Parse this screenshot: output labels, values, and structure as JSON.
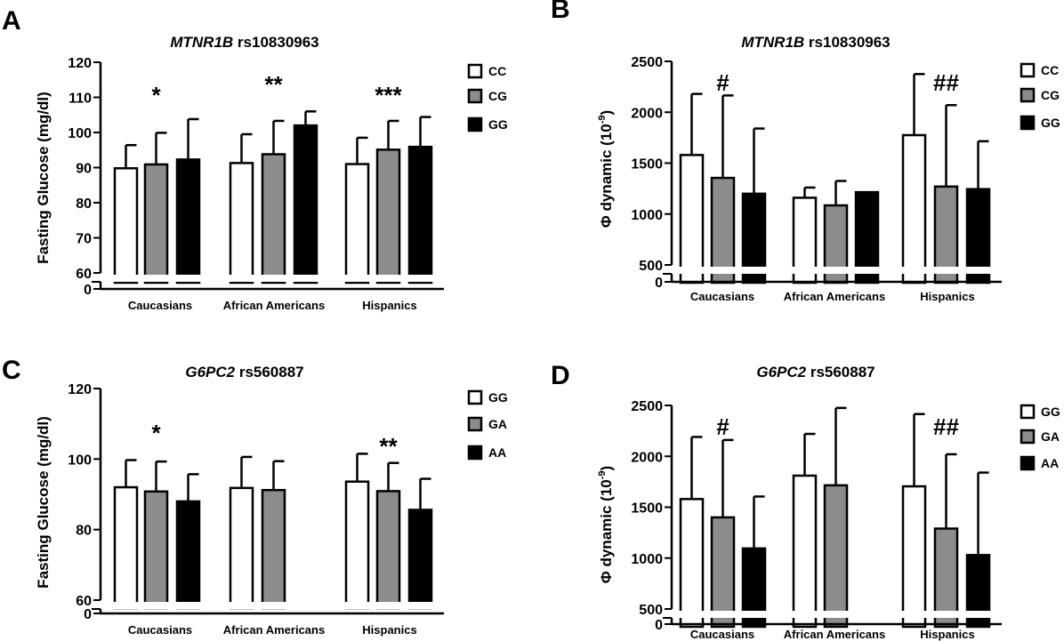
{
  "chart_data": [
    {
      "type": "bar",
      "panel": "A",
      "title_gene": "MTNR1B",
      "title_snp": "rs10830963",
      "ylabel": "Fasting Glucose (mg/dl)",
      "ylim": [
        60,
        120
      ],
      "yticks": [
        60,
        70,
        80,
        90,
        100,
        110,
        120
      ],
      "axis_break": true,
      "categories": [
        "Caucasians",
        "African Americans",
        "Hispanics"
      ],
      "series": [
        {
          "name": "CC",
          "values": [
            89.8,
            91.3,
            91.0
          ],
          "errors": [
            6.6,
            8.2,
            7.5
          ]
        },
        {
          "name": "CG",
          "values": [
            90.9,
            93.8,
            95.1
          ],
          "errors": [
            9.0,
            9.5,
            8.2
          ]
        },
        {
          "name": "GG",
          "values": [
            92.3,
            102.0,
            95.9
          ],
          "errors": [
            11.5,
            4.0,
            8.5
          ]
        }
      ],
      "annotations": [
        "*",
        "**",
        "***"
      ],
      "legend_position": "top-right"
    },
    {
      "type": "bar",
      "panel": "B",
      "title_gene": "MTNR1B",
      "title_snp": "rs10830963",
      "ylabel_prefix": "Φ dynamic (10",
      "ylabel_exp": "-9",
      "ylabel_suffix": ")",
      "ylim": [
        500,
        2500
      ],
      "yticks": [
        500,
        1000,
        1500,
        2000,
        2500
      ],
      "axis_break": true,
      "categories": [
        "Caucasians",
        "African Americans",
        "Hispanics"
      ],
      "series": [
        {
          "name": "CC",
          "values": [
            1580,
            1160,
            1775
          ],
          "errors": [
            600,
            100,
            600
          ]
        },
        {
          "name": "CG",
          "values": [
            1355,
            1085,
            1270
          ],
          "errors": [
            810,
            240,
            800
          ]
        },
        {
          "name": "GG",
          "values": [
            1200,
            1215,
            1245
          ],
          "errors": [
            640,
            0,
            470
          ]
        }
      ],
      "annotations": [
        "#",
        "",
        "##"
      ],
      "legend_position": "top-right"
    },
    {
      "type": "bar",
      "panel": "C",
      "title_gene": "G6PC2",
      "title_snp": "rs560887",
      "ylabel": "Fasting Glucose (mg/dl)",
      "ylim": [
        60,
        120
      ],
      "yticks": [
        60,
        80,
        100,
        120
      ],
      "axis_break": true,
      "categories": [
        "Caucasians",
        "African Americans",
        "Hispanics"
      ],
      "series": [
        {
          "name": "GG",
          "values": [
            92.0,
            91.8,
            93.6
          ],
          "errors": [
            7.7,
            8.8,
            7.9
          ]
        },
        {
          "name": "GA",
          "values": [
            90.8,
            91.2,
            90.9
          ],
          "errors": [
            8.5,
            8.2,
            8.0
          ]
        },
        {
          "name": "AA",
          "values": [
            88.0,
            null,
            85.6
          ],
          "errors": [
            7.7,
            null,
            8.8
          ]
        }
      ],
      "annotations": [
        "*",
        "",
        "**"
      ],
      "legend_position": "top-right"
    },
    {
      "type": "bar",
      "panel": "D",
      "title_gene": "G6PC2",
      "title_snp": "rs560887",
      "ylabel_prefix": "Φ dynamic (10",
      "ylabel_exp": "-9",
      "ylabel_suffix": ")",
      "ylim": [
        500,
        2500
      ],
      "yticks": [
        500,
        1000,
        1500,
        2000,
        2500
      ],
      "axis_break": true,
      "categories": [
        "Caucasians",
        "African Americans",
        "Hispanics"
      ],
      "series": [
        {
          "name": "GG",
          "values": [
            1580,
            1810,
            1705
          ],
          "errors": [
            610,
            410,
            710
          ]
        },
        {
          "name": "GA",
          "values": [
            1400,
            1715,
            1290
          ],
          "errors": [
            760,
            760,
            730
          ]
        },
        {
          "name": "AA",
          "values": [
            1095,
            null,
            1030
          ],
          "errors": [
            510,
            null,
            810
          ]
        }
      ],
      "annotations": [
        "#",
        "",
        "##"
      ],
      "legend_position": "top-right"
    }
  ]
}
